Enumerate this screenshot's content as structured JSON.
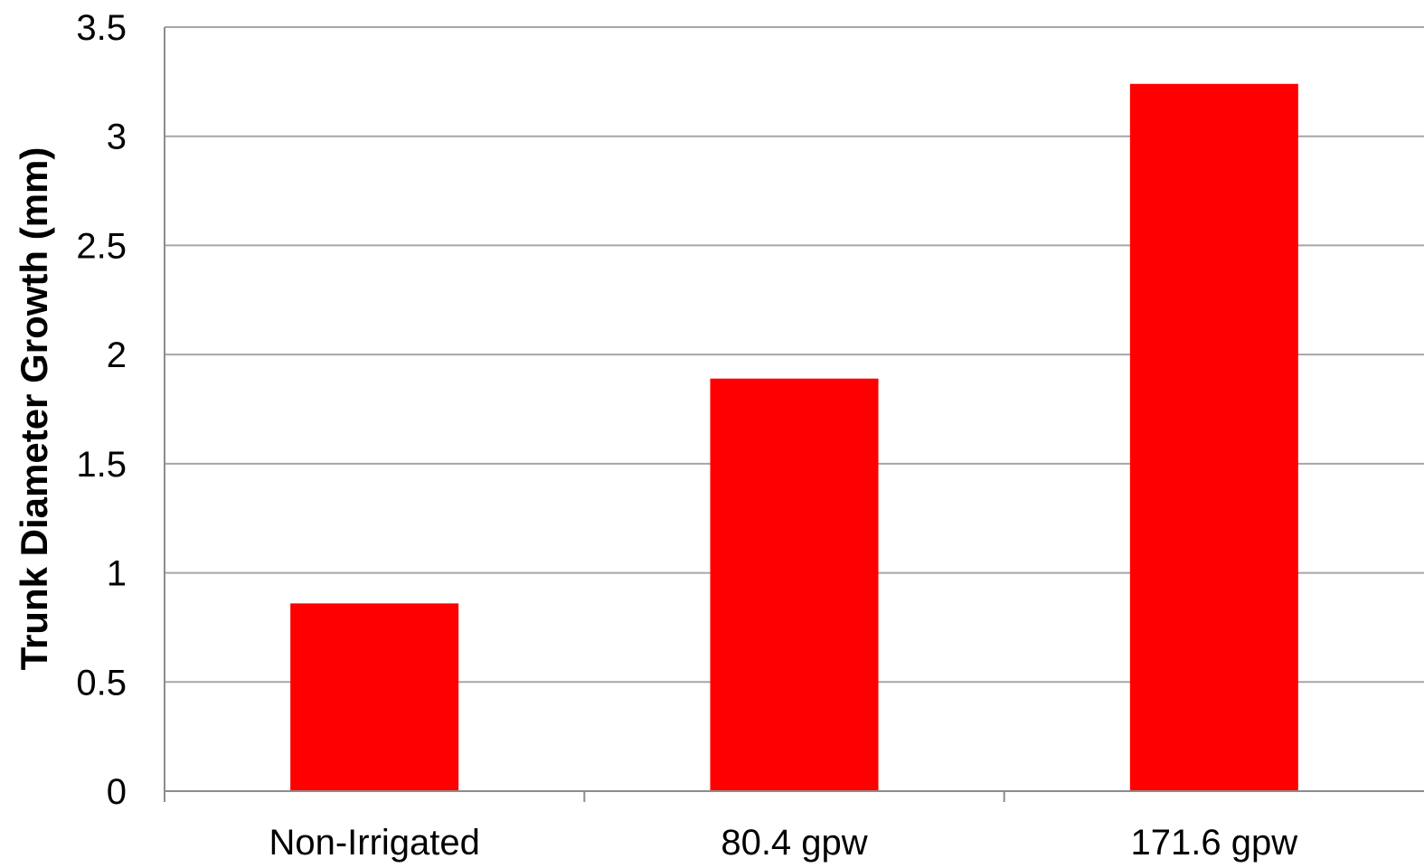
{
  "chart_data": {
    "type": "bar",
    "categories": [
      "Non-Irrigated",
      "80.4 gpw",
      "171.6 gpw"
    ],
    "values": [
      0.86,
      1.89,
      3.24
    ],
    "title": "",
    "xlabel": "",
    "ylabel": "Trunk Diameter Growth (mm)",
    "ylim": [
      0,
      3.5
    ],
    "yticks": [
      "0",
      "0.5",
      "1",
      "1.5",
      "2",
      "2.5",
      "3",
      "3.5"
    ],
    "grid": true,
    "legend": "none",
    "colors": {
      "bar": "#ff0000",
      "grid": "#a6a6a6",
      "axis": "#8c8c8c"
    }
  }
}
